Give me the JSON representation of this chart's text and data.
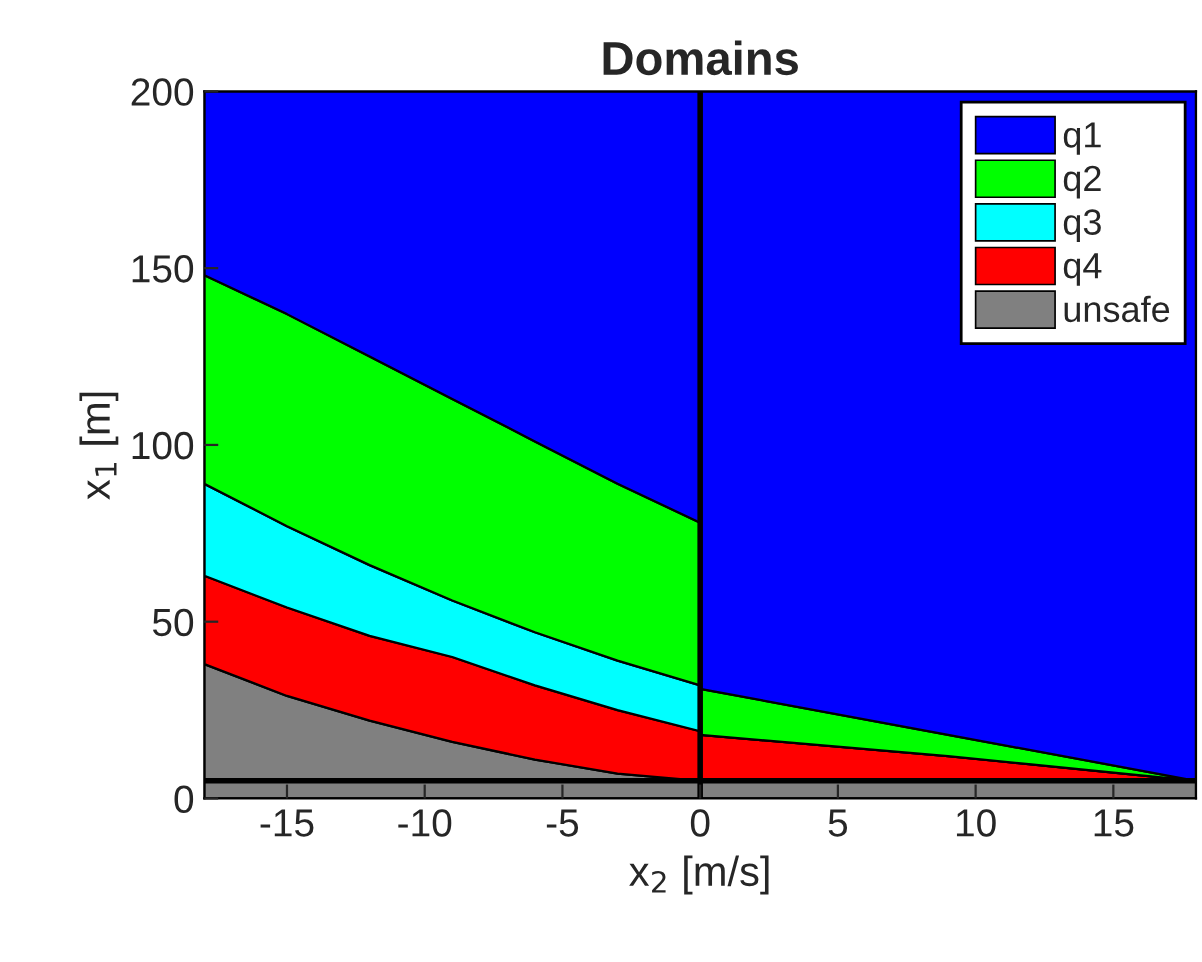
{
  "chart_data": {
    "type": "area",
    "stacked": true,
    "title": "Domains",
    "xlabel": "x$_{2}$ [m/s]",
    "ylabel": "x$_{1}$ [m]",
    "x": [
      -18,
      -15,
      -12,
      -9,
      -6,
      -3,
      0,
      0,
      9,
      18
    ],
    "series": [
      {
        "name": "unsafe",
        "color": "#808080",
        "values": [
          38,
          29,
          22,
          16,
          11,
          7,
          5,
          5,
          5,
          5
        ]
      },
      {
        "name": "q4",
        "color": "#ff0000",
        "values": [
          25,
          25,
          24,
          24,
          21,
          18,
          14,
          13,
          7,
          0
        ]
      },
      {
        "name": "q3",
        "color": "#00ffff",
        "values": [
          26,
          23,
          20,
          16,
          15,
          14,
          13,
          0,
          0,
          0
        ]
      },
      {
        "name": "q2",
        "color": "#00ff00",
        "values": [
          59,
          60,
          59,
          57,
          54,
          50,
          46,
          13,
          6,
          0
        ]
      },
      {
        "name": "q1",
        "color": "#0000ff",
        "values": [
          52,
          63,
          75,
          87,
          99,
          111,
          122,
          169,
          182,
          195
        ]
      }
    ],
    "xlim": [
      -18,
      18
    ],
    "xticks": [
      -15,
      -10,
      -5,
      0,
      5,
      10,
      15
    ],
    "ylim": [
      0,
      200
    ],
    "yticks": [
      0,
      50,
      100,
      150,
      200
    ],
    "ref_lines": [
      {
        "axis": "x",
        "value": 0,
        "color": "#000000"
      },
      {
        "axis": "y",
        "value": 5,
        "color": "#000000"
      }
    ],
    "grid": false,
    "legend": "top right"
  }
}
